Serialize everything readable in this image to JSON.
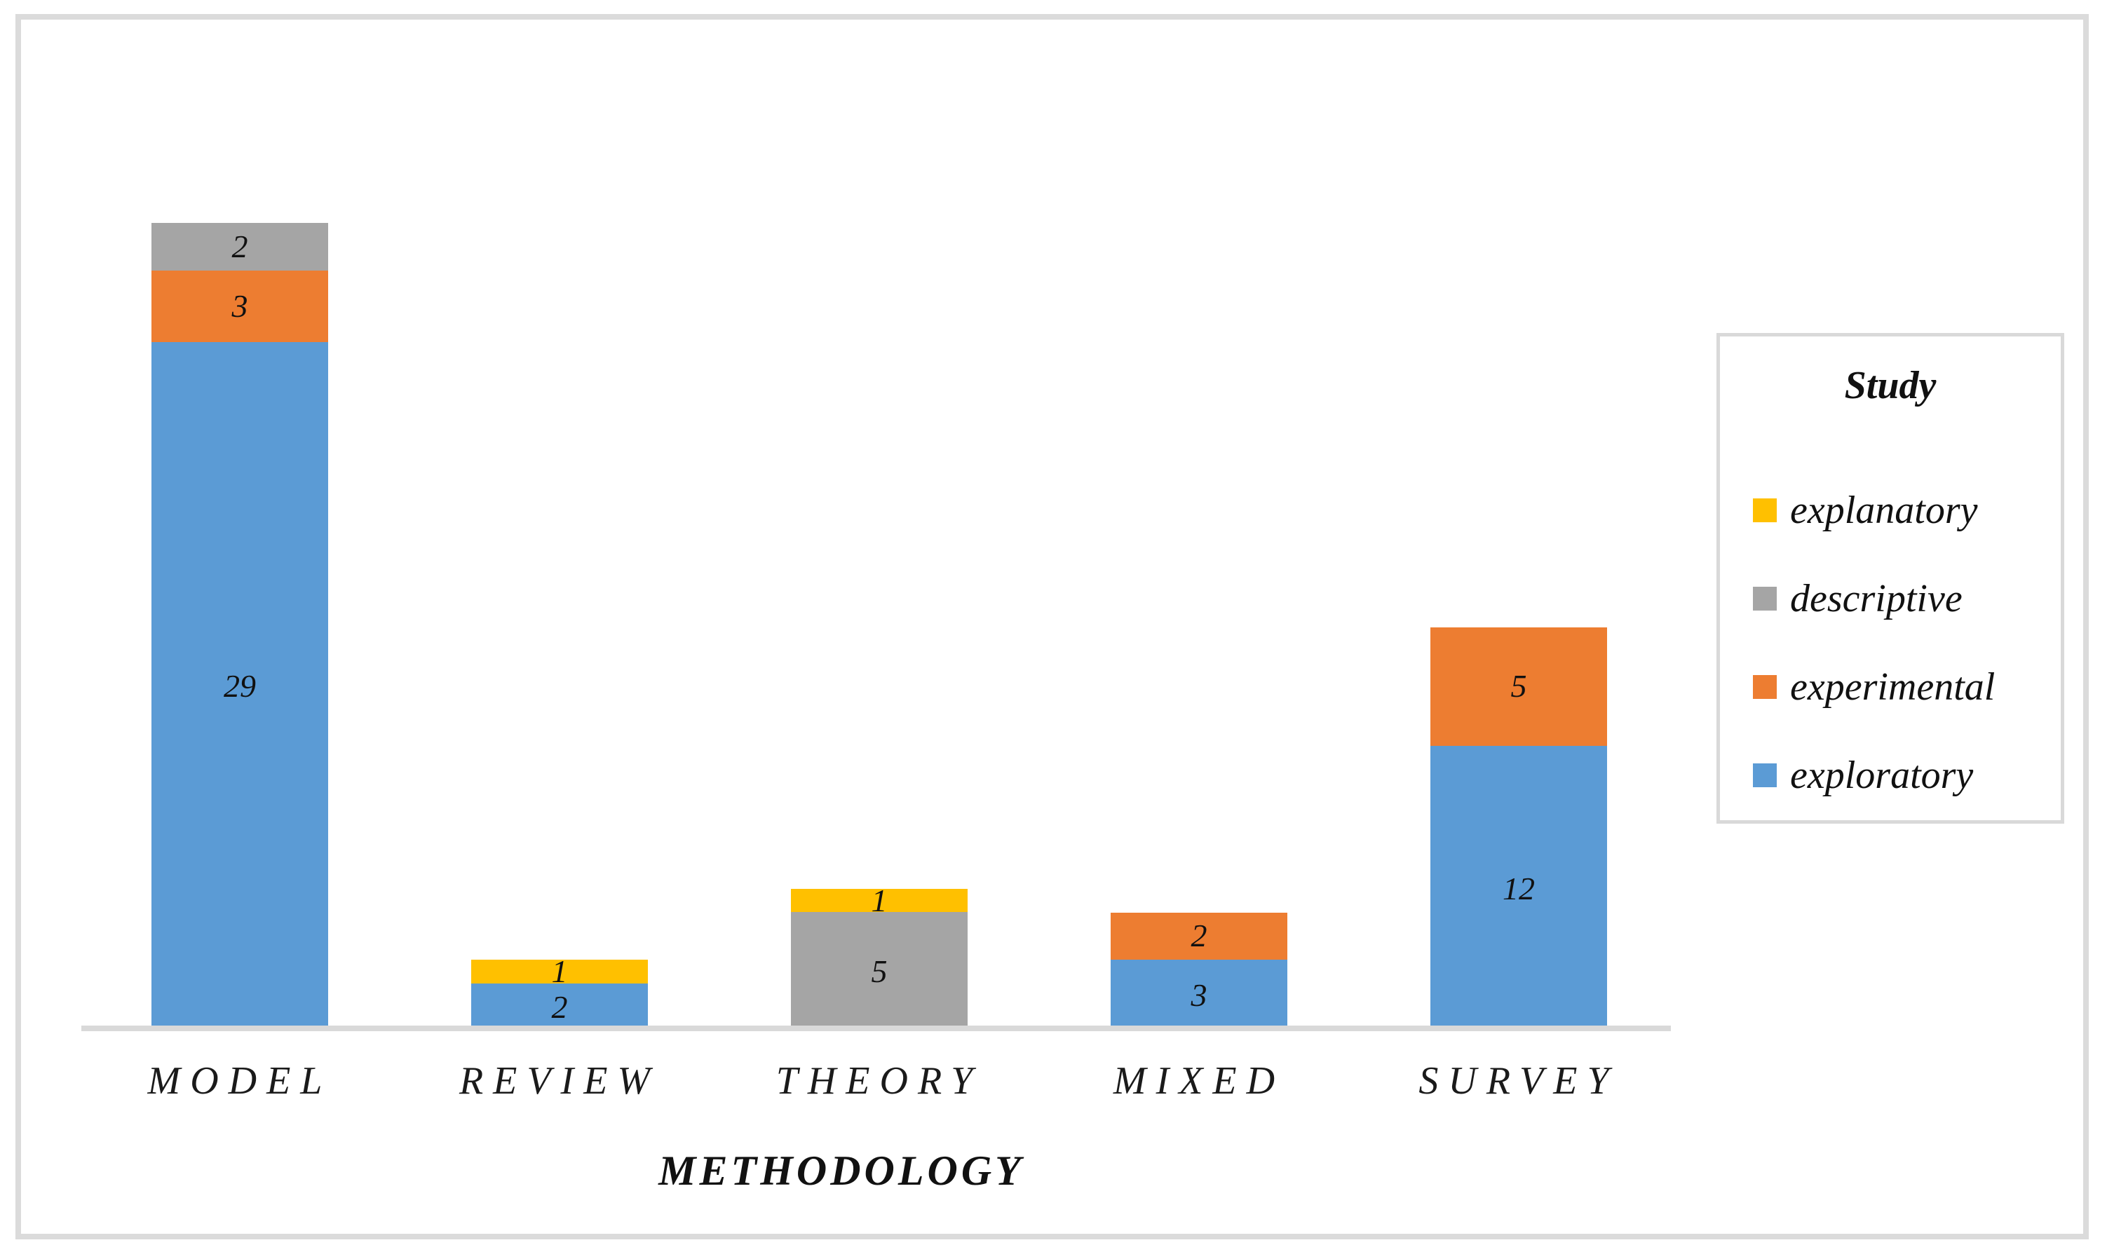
{
  "chart_data": {
    "type": "bar",
    "stacked": true,
    "categories": [
      "MODEL",
      "REVIEW",
      "THEORY",
      "MIXED",
      "SURVEY"
    ],
    "series": [
      {
        "name": "exploratory",
        "color": "#5B9BD5",
        "values": [
          29,
          2,
          0,
          3,
          12
        ]
      },
      {
        "name": "experimental",
        "color": "#ED7D31",
        "values": [
          3,
          0,
          0,
          2,
          5
        ]
      },
      {
        "name": "descriptive",
        "color": "#A5A5A5",
        "values": [
          2,
          0,
          5,
          0,
          0
        ]
      },
      {
        "name": "explanatory",
        "color": "#FFC000",
        "values": [
          0,
          1,
          1,
          0,
          0
        ]
      }
    ],
    "title": "",
    "xlabel": "METHODOLOGY",
    "ylabel": "",
    "ylim": [
      0,
      34
    ],
    "grid": false,
    "value_axis_visible": false,
    "data_labels_visible": true,
    "legend": {
      "title": "Study",
      "position": "right",
      "items": [
        {
          "label": "explanatory",
          "color": "#FFC000"
        },
        {
          "label": "descriptive",
          "color": "#A5A5A5"
        },
        {
          "label": "experimental",
          "color": "#ED7D31"
        },
        {
          "label": "exploratory",
          "color": "#5B9BD5"
        }
      ]
    }
  },
  "frame": {
    "border_color": "#DBDBDB",
    "axis_line_color": "#D9D9D9"
  }
}
